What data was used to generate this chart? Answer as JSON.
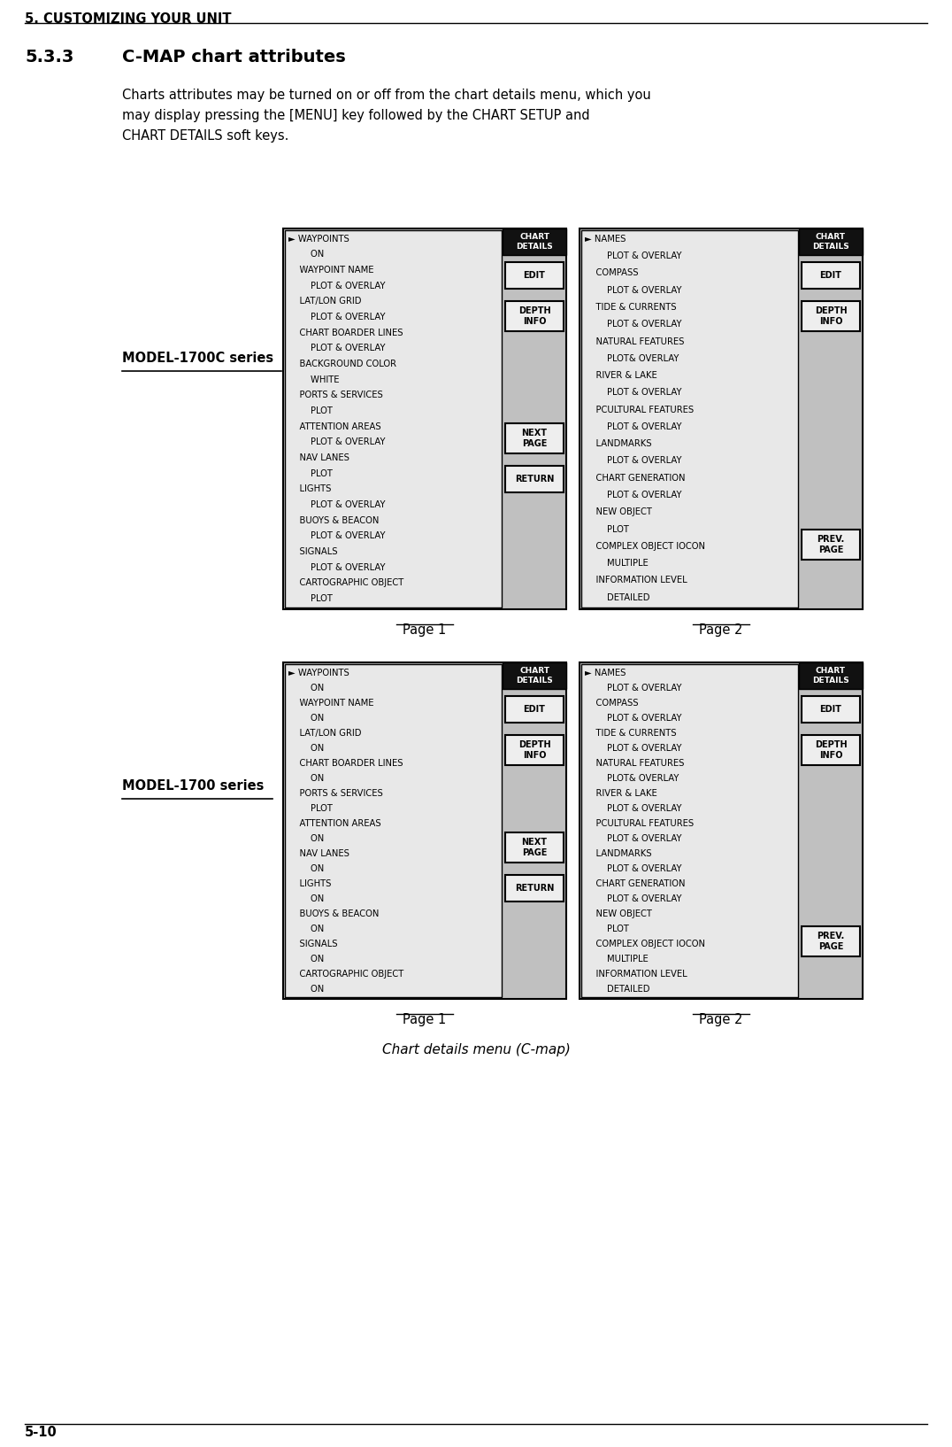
{
  "page_header": "5. CUSTOMIZING YOUR UNIT",
  "section_num": "5.3.3",
  "section_title": "C-MAP chart attributes",
  "body_text_lines": [
    "Charts attributes may be turned on or off from the chart details menu, which you",
    "may display pressing the [MENU] key followed by the CHART SETUP and",
    "CHART DETAILS soft keys."
  ],
  "footer_left": "5-10",
  "caption": "Chart details menu (C-map)",
  "model_1700C_label": "MODEL-1700C series",
  "model_1700_label": "MODEL-1700 series",
  "page1_label": "Page 1",
  "page2_label": "Page 2",
  "top_left_page1_lines": [
    [
      "► WAYPOINTS",
      true
    ],
    [
      "        ON",
      false
    ],
    [
      "    WAYPOINT NAME",
      false
    ],
    [
      "        PLOT & OVERLAY",
      false
    ],
    [
      "    LAT/LON GRID",
      false
    ],
    [
      "        PLOT & OVERLAY",
      false
    ],
    [
      "    CHART BOARDER LINES",
      false
    ],
    [
      "        PLOT & OVERLAY",
      false
    ],
    [
      "    BACKGROUND COLOR",
      false
    ],
    [
      "        WHITE",
      false
    ],
    [
      "    PORTS & SERVICES",
      false
    ],
    [
      "        PLOT",
      false
    ],
    [
      "    ATTENTION AREAS",
      false
    ],
    [
      "        PLOT & OVERLAY",
      false
    ],
    [
      "    NAV LANES",
      false
    ],
    [
      "        PLOT",
      false
    ],
    [
      "    LIGHTS",
      false
    ],
    [
      "        PLOT & OVERLAY",
      false
    ],
    [
      "    BUOYS & BEACON",
      false
    ],
    [
      "        PLOT & OVERLAY",
      false
    ],
    [
      "    SIGNALS",
      false
    ],
    [
      "        PLOT & OVERLAY",
      false
    ],
    [
      "    CARTOGRAPHIC OBJECT",
      false
    ],
    [
      "        PLOT",
      false
    ]
  ],
  "top_right_page2_lines": [
    [
      "► NAMES",
      true
    ],
    [
      "        PLOT & OVERLAY",
      false
    ],
    [
      "    COMPASS",
      false
    ],
    [
      "        PLOT & OVERLAY",
      false
    ],
    [
      "    TIDE & CURRENTS",
      false
    ],
    [
      "        PLOT & OVERLAY",
      false
    ],
    [
      "    NATURAL FEATURES",
      false
    ],
    [
      "        PLOT& OVERLAY",
      false
    ],
    [
      "    RIVER & LAKE",
      false
    ],
    [
      "        PLOT & OVERLAY",
      false
    ],
    [
      "    PCULTURAL FEATURES",
      false
    ],
    [
      "        PLOT & OVERLAY",
      false
    ],
    [
      "    LANDMARKS",
      false
    ],
    [
      "        PLOT & OVERLAY",
      false
    ],
    [
      "    CHART GENERATION",
      false
    ],
    [
      "        PLOT & OVERLAY",
      false
    ],
    [
      "    NEW OBJECT",
      false
    ],
    [
      "        PLOT",
      false
    ],
    [
      "    COMPLEX OBJECT IOCON",
      false
    ],
    [
      "        MULTIPLE",
      false
    ],
    [
      "    INFORMATION LEVEL",
      false
    ],
    [
      "        DETAILED",
      false
    ]
  ],
  "bot_left_page1_lines": [
    [
      "► WAYPOINTS",
      true
    ],
    [
      "        ON",
      false
    ],
    [
      "    WAYPOINT NAME",
      false
    ],
    [
      "        ON",
      false
    ],
    [
      "    LAT/LON GRID",
      false
    ],
    [
      "        ON",
      false
    ],
    [
      "    CHART BOARDER LINES",
      false
    ],
    [
      "        ON",
      false
    ],
    [
      "    PORTS & SERVICES",
      false
    ],
    [
      "        PLOT",
      false
    ],
    [
      "    ATTENTION AREAS",
      false
    ],
    [
      "        ON",
      false
    ],
    [
      "    NAV LANES",
      false
    ],
    [
      "        ON",
      false
    ],
    [
      "    LIGHTS",
      false
    ],
    [
      "        ON",
      false
    ],
    [
      "    BUOYS & BEACON",
      false
    ],
    [
      "        ON",
      false
    ],
    [
      "    SIGNALS",
      false
    ],
    [
      "        ON",
      false
    ],
    [
      "    CARTOGRAPHIC OBJECT",
      false
    ],
    [
      "        ON",
      false
    ]
  ],
  "bot_right_page2_lines": [
    [
      "► NAMES",
      true
    ],
    [
      "        PLOT & OVERLAY",
      false
    ],
    [
      "    COMPASS",
      false
    ],
    [
      "        PLOT & OVERLAY",
      false
    ],
    [
      "    TIDE & CURRENTS",
      false
    ],
    [
      "        PLOT & OVERLAY",
      false
    ],
    [
      "    NATURAL FEATURES",
      false
    ],
    [
      "        PLOT& OVERLAY",
      false
    ],
    [
      "    RIVER & LAKE",
      false
    ],
    [
      "        PLOT & OVERLAY",
      false
    ],
    [
      "    PCULTURAL FEATURES",
      false
    ],
    [
      "        PLOT & OVERLAY",
      false
    ],
    [
      "    LANDMARKS",
      false
    ],
    [
      "        PLOT & OVERLAY",
      false
    ],
    [
      "    CHART GENERATION",
      false
    ],
    [
      "        PLOT & OVERLAY",
      false
    ],
    [
      "    NEW OBJECT",
      false
    ],
    [
      "        PLOT",
      false
    ],
    [
      "    COMPLEX OBJECT IOCON",
      false
    ],
    [
      "        MULTIPLE",
      false
    ],
    [
      "    INFORMATION LEVEL",
      false
    ],
    [
      "        DETAILED",
      false
    ]
  ]
}
